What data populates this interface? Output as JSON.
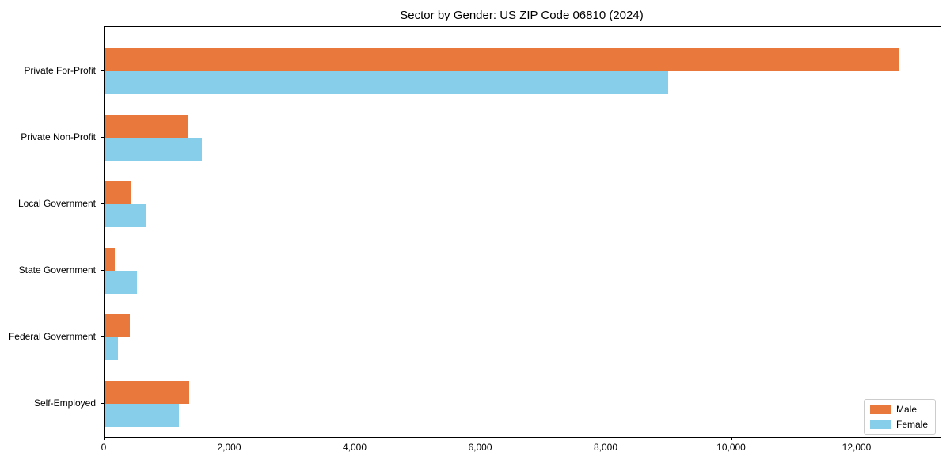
{
  "title": "Sector by Gender: US ZIP Code 06810 (2024)",
  "chart_data": {
    "type": "bar",
    "orientation": "horizontal",
    "title": "Sector by Gender: US ZIP Code 06810 (2024)",
    "categories": [
      "Private For-Profit",
      "Private Non-Profit",
      "Local Government",
      "State Government",
      "Federal Government",
      "Self-Employed"
    ],
    "series": [
      {
        "name": "Male",
        "color": "#e8783b",
        "values": [
          12670,
          1340,
          430,
          165,
          405,
          1350
        ]
      },
      {
        "name": "Female",
        "color": "#87ceeb",
        "values": [
          8980,
          1550,
          655,
          520,
          215,
          1190
        ]
      }
    ],
    "xlim": [
      0,
      13325
    ],
    "x_ticks": [
      0,
      2000,
      4000,
      6000,
      8000,
      10000,
      12000
    ],
    "x_tick_labels": [
      "0",
      "2,000",
      "4,000",
      "6,000",
      "8,000",
      "10,000",
      "12,000"
    ],
    "xlabel": "",
    "ylabel": "",
    "grid": false,
    "legend_position": "lower right"
  },
  "legend": {
    "items": [
      {
        "label": "Male",
        "color": "#e8783b"
      },
      {
        "label": "Female",
        "color": "#87ceeb"
      }
    ]
  }
}
